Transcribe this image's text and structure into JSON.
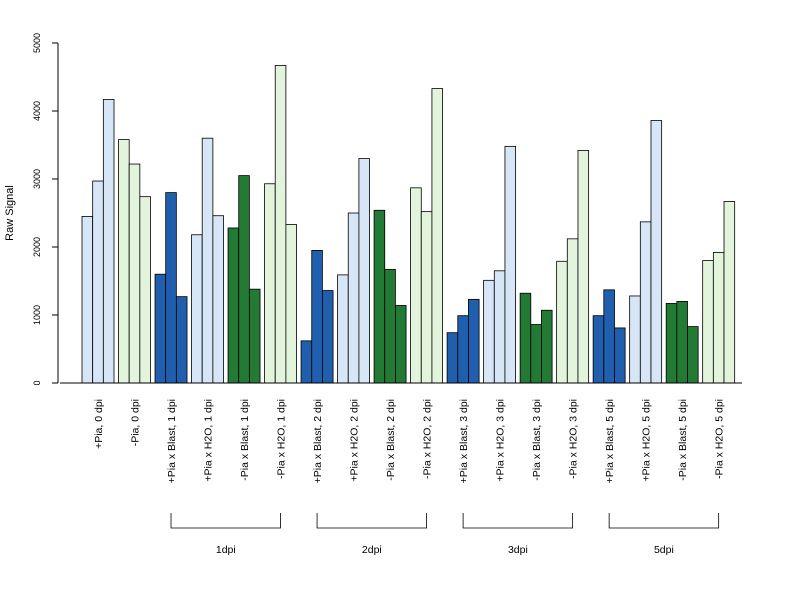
{
  "chart_data": {
    "type": "bar",
    "title": "",
    "xlabel": "",
    "ylabel": "Raw Signal",
    "ylim": [
      0,
      5000
    ],
    "yticks": [
      0,
      1000,
      2000,
      3000,
      4000,
      5000
    ],
    "grid": false,
    "legend": "none",
    "colors": {
      "light_blue": "#d6e6f6",
      "light_green": "#e2f5dc",
      "dark_blue": "#1f5fad",
      "dark_green": "#237a35"
    },
    "categories": [
      {
        "label": "+Pia, 0 dpi",
        "color": "light_blue",
        "values": [
          2450,
          2970,
          4170
        ]
      },
      {
        "label": "-Pia, 0 dpi",
        "color": "light_green",
        "values": [
          3580,
          3220,
          2740
        ]
      },
      {
        "label": "+Pia x Blast, 1 dpi",
        "color": "dark_blue",
        "values": [
          1600,
          2800,
          1270
        ]
      },
      {
        "label": "+Pia x H2O, 1 dpi",
        "color": "light_blue",
        "values": [
          2180,
          3600,
          2460
        ]
      },
      {
        "label": "-Pia x Blast, 1 dpi",
        "color": "dark_green",
        "values": [
          2280,
          3050,
          1380
        ]
      },
      {
        "label": "-Pia x H2O, 1 dpi",
        "color": "light_green",
        "values": [
          2930,
          4670,
          2330
        ]
      },
      {
        "label": "+Pia x Blast, 2 dpi",
        "color": "dark_blue",
        "values": [
          620,
          1950,
          1360
        ]
      },
      {
        "label": "+Pia x H2O, 2 dpi",
        "color": "light_blue",
        "values": [
          1590,
          2500,
          3300
        ]
      },
      {
        "label": "-Pia x Blast, 2 dpi",
        "color": "dark_green",
        "values": [
          2540,
          1670,
          1140
        ]
      },
      {
        "label": "-Pia x H2O, 2 dpi",
        "color": "light_green",
        "values": [
          2870,
          2520,
          4330
        ]
      },
      {
        "label": "+Pia x Blast, 3 dpi",
        "color": "dark_blue",
        "values": [
          740,
          990,
          1230
        ]
      },
      {
        "label": "+Pia x H2O, 3 dpi",
        "color": "light_blue",
        "values": [
          1510,
          1650,
          3480
        ]
      },
      {
        "label": "-Pia x Blast, 3 dpi",
        "color": "dark_green",
        "values": [
          1320,
          860,
          1070
        ]
      },
      {
        "label": "-Pia x H2O, 3 dpi",
        "color": "light_green",
        "values": [
          1790,
          2120,
          3420
        ]
      },
      {
        "label": "+Pia x Blast, 5 dpi",
        "color": "dark_blue",
        "values": [
          990,
          1370,
          810
        ]
      },
      {
        "label": "+Pia x H2O, 5 dpi",
        "color": "light_blue",
        "values": [
          1280,
          2370,
          3860
        ]
      },
      {
        "label": "-Pia x Blast, 5 dpi",
        "color": "dark_green",
        "values": [
          1170,
          1200,
          830
        ]
      },
      {
        "label": "-Pia x H2O, 5 dpi",
        "color": "light_green",
        "values": [
          1800,
          1920,
          2670
        ]
      }
    ],
    "groups": [
      {
        "label": "1dpi",
        "start": 2,
        "end": 5
      },
      {
        "label": "2dpi",
        "start": 6,
        "end": 9
      },
      {
        "label": "3dpi",
        "start": 10,
        "end": 13
      },
      {
        "label": "5dpi",
        "start": 14,
        "end": 17
      }
    ]
  }
}
